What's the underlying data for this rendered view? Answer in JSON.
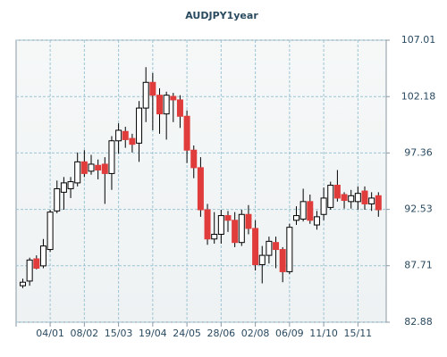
{
  "chart_data": {
    "type": "candlestick",
    "title": "AUDJPY1year",
    "categories": [
      null,
      null,
      null,
      null,
      "04/01",
      null,
      null,
      null,
      null,
      "08/02",
      null,
      null,
      null,
      null,
      "15/03",
      null,
      null,
      null,
      null,
      "19/04",
      null,
      null,
      null,
      null,
      "24/05",
      null,
      null,
      null,
      null,
      "28/06",
      null,
      null,
      null,
      null,
      "02/08",
      null,
      null,
      null,
      null,
      "06/09",
      null,
      null,
      null,
      null,
      "11/10",
      null,
      null,
      null,
      null,
      "15/11",
      null,
      null,
      null
    ],
    "series": [
      {
        "up_color": "#ffffff",
        "down_color": "#e03c3c",
        "open": [
          86.0,
          86.4,
          88.3,
          87.7,
          89.1,
          92.4,
          94.0,
          94.3,
          94.8,
          96.6,
          95.8,
          96.3,
          96.4,
          95.6,
          98.4,
          99.2,
          98.6,
          98.2,
          101.2,
          103.4,
          102.3,
          100.7,
          102.2,
          101.9,
          100.5,
          97.6,
          96.1,
          92.5,
          90.0,
          90.4,
          92.0,
          91.6,
          89.7,
          92.1,
          90.9,
          87.8,
          88.6,
          89.7,
          89.1,
          87.2,
          91.6,
          91.7,
          93.2,
          91.2,
          92.1,
          92.7,
          94.6,
          93.8,
          93.2,
          93.2,
          94.1,
          93.0,
          93.7
        ],
        "high": [
          86.6,
          88.4,
          88.6,
          90.0,
          92.5,
          95.0,
          95.3,
          95.3,
          97.4,
          97.6,
          97.2,
          96.8,
          97.0,
          98.8,
          99.9,
          99.6,
          99.0,
          101.8,
          104.7,
          104.2,
          102.9,
          102.6,
          102.5,
          102.3,
          101.0,
          98.0,
          97.0,
          93.0,
          92.3,
          92.5,
          92.4,
          92.3,
          92.5,
          92.9,
          91.6,
          89.4,
          90.2,
          90.2,
          89.3,
          91.3,
          92.8,
          94.3,
          93.8,
          92.4,
          94.4,
          94.9,
          95.9,
          94.0,
          94.2,
          94.5,
          94.5,
          94.0,
          94.0
        ],
        "low": [
          85.8,
          86.0,
          87.4,
          87.5,
          88.9,
          92.2,
          92.5,
          93.5,
          94.5,
          95.3,
          95.5,
          95.1,
          93.0,
          94.2,
          97.3,
          97.8,
          97.4,
          96.6,
          100.0,
          99.3,
          99.0,
          98.5,
          100.0,
          99.5,
          96.5,
          95.2,
          91.9,
          89.5,
          89.6,
          89.6,
          90.6,
          89.3,
          89.4,
          90.4,
          87.3,
          86.2,
          87.9,
          87.5,
          86.3,
          87.0,
          91.2,
          91.5,
          91.3,
          90.8,
          91.6,
          92.5,
          93.2,
          92.6,
          92.6,
          92.5,
          92.5,
          92.4,
          91.9
        ],
        "close": [
          86.3,
          88.2,
          87.5,
          89.4,
          92.3,
          94.3,
          94.8,
          94.9,
          96.6,
          95.6,
          96.4,
          95.9,
          95.6,
          98.4,
          99.3,
          98.5,
          98.1,
          101.2,
          103.4,
          102.3,
          100.7,
          102.3,
          101.9,
          100.5,
          97.6,
          96.1,
          92.5,
          90.0,
          90.4,
          92.0,
          91.6,
          89.7,
          92.1,
          90.9,
          87.8,
          88.6,
          89.8,
          89.1,
          87.2,
          91.0,
          92.0,
          93.2,
          91.6,
          91.9,
          93.5,
          94.6,
          93.5,
          93.3,
          93.7,
          93.9,
          93.0,
          93.5,
          92.5
        ]
      }
    ],
    "ylim": [
      82.88,
      107.01
    ],
    "yticks": [
      82.88,
      87.71,
      92.53,
      97.36,
      102.18,
      107.01
    ],
    "grid": true,
    "axis_side": "right"
  }
}
